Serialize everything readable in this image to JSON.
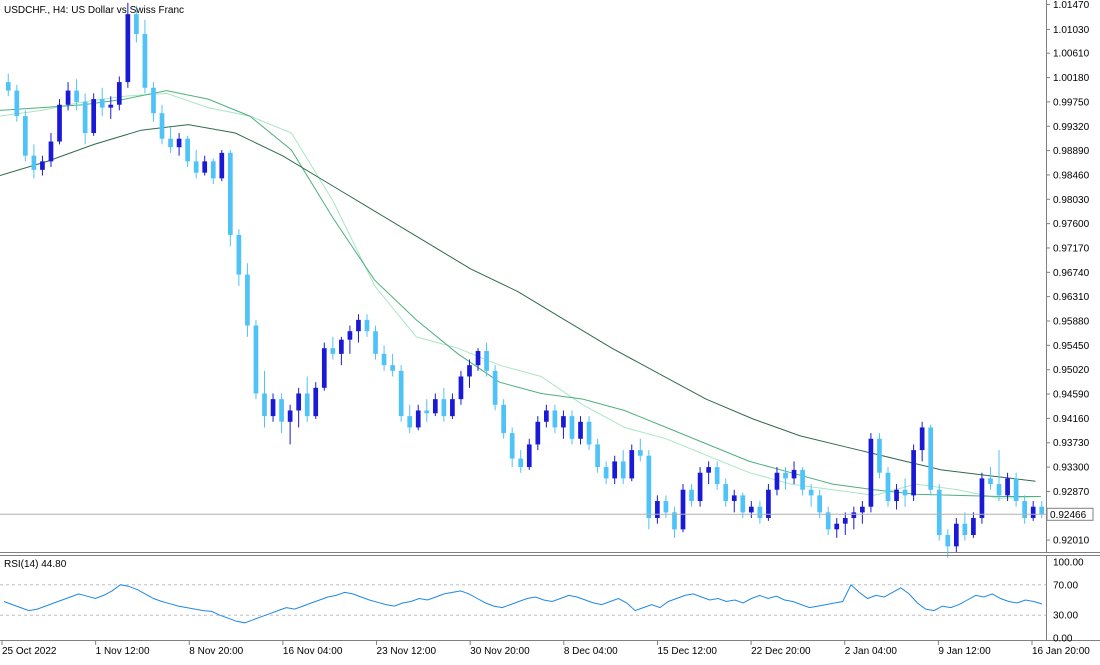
{
  "chart_data": [
    {
      "type": "candlestick",
      "title": "USDCHF., H4:  US Dollar vs Swiss Franc",
      "y_ticks": [
        "1.01470",
        "1.01030",
        "1.00610",
        "1.00180",
        "0.99750",
        "0.99320",
        "0.98890",
        "0.98460",
        "0.98030",
        "0.97600",
        "0.97170",
        "0.96740",
        "0.96310",
        "0.95880",
        "0.95450",
        "0.95020",
        "0.94590",
        "0.94160",
        "0.93730",
        "0.93300",
        "0.92870",
        "0.92010"
      ],
      "ylim": [
        0.918,
        1.0155
      ],
      "current_price": 0.92466,
      "current_price_label": "0.92466",
      "colors": {
        "bull": "#1a1ad6",
        "bear": "#4fc3f7",
        "ma_fast": "#a8e6c4",
        "ma_mid": "#4fb07e",
        "ma_slow": "#2e6b4c",
        "price_line": "#b0b0b0"
      },
      "moving_averages": [
        {
          "y": [
            0.995,
            0.996,
            0.9975,
            0.9985,
            0.999,
            0.9965,
            0.995,
            0.992,
            0.98,
            0.965,
            0.956,
            0.954,
            0.951,
            0.949,
            0.944,
            0.94,
            0.938,
            0.935,
            0.932,
            0.93,
            0.929,
            0.928,
            0.93,
            0.929,
            0.9275,
            0.9278
          ]
        },
        {
          "y": [
            0.996,
            0.9965,
            0.997,
            0.998,
            0.9995,
            0.998,
            0.995,
            0.989,
            0.977,
            0.966,
            0.959,
            0.953,
            0.948,
            0.946,
            0.945,
            0.943,
            0.94,
            0.937,
            0.934,
            0.932,
            0.93,
            0.929,
            0.9282,
            0.928,
            0.9278,
            0.9278
          ]
        },
        {
          "y": [
            0.9845,
            0.987,
            0.99,
            0.9925,
            0.9935,
            0.992,
            0.988,
            0.983,
            0.978,
            0.973,
            0.968,
            0.964,
            0.959,
            0.954,
            0.9495,
            0.945,
            0.9415,
            0.9385,
            0.9365,
            0.9345,
            0.9325,
            0.9315,
            0.9305
          ]
        }
      ],
      "ohlc": [
        [
          1.001,
          1.0025,
          0.9985,
          0.9995
        ],
        [
          0.9995,
          1.0005,
          0.994,
          0.995
        ],
        [
          0.995,
          0.996,
          0.987,
          0.988
        ],
        [
          0.988,
          0.99,
          0.984,
          0.9855
        ],
        [
          0.9855,
          0.988,
          0.9845,
          0.987
        ],
        [
          0.987,
          0.992,
          0.986,
          0.9905
        ],
        [
          0.9905,
          0.998,
          0.99,
          0.997
        ],
        [
          0.997,
          1.001,
          0.996,
          0.9995
        ],
        [
          0.9995,
          1.0015,
          0.996,
          0.9975
        ],
        [
          0.9975,
          0.999,
          0.99,
          0.992
        ],
        [
          0.992,
          0.999,
          0.9915,
          0.998
        ],
        [
          0.998,
          1.0,
          0.995,
          0.9965
        ],
        [
          0.9965,
          0.9985,
          0.9945,
          0.997
        ],
        [
          0.997,
          1.002,
          0.996,
          1.001
        ],
        [
          1.001,
          1.015,
          1.0,
          1.013
        ],
        [
          1.013,
          1.0145,
          1.008,
          1.0095
        ],
        [
          1.0095,
          1.012,
          0.999,
          1.0
        ],
        [
          1.0,
          1.001,
          0.994,
          0.9955
        ],
        [
          0.9955,
          0.997,
          0.99,
          0.991
        ],
        [
          0.991,
          0.993,
          0.9885,
          0.9895
        ],
        [
          0.9895,
          0.992,
          0.988,
          0.991
        ],
        [
          0.991,
          0.9915,
          0.986,
          0.987
        ],
        [
          0.987,
          0.989,
          0.984,
          0.985
        ],
        [
          0.985,
          0.988,
          0.9845,
          0.987
        ],
        [
          0.987,
          0.9875,
          0.983,
          0.984
        ],
        [
          0.984,
          0.989,
          0.9835,
          0.9885
        ],
        [
          0.9885,
          0.989,
          0.972,
          0.974
        ],
        [
          0.974,
          0.975,
          0.965,
          0.967
        ],
        [
          0.967,
          0.969,
          0.956,
          0.958
        ],
        [
          0.958,
          0.959,
          0.945,
          0.946
        ],
        [
          0.946,
          0.95,
          0.94,
          0.942
        ],
        [
          0.942,
          0.946,
          0.941,
          0.945
        ],
        [
          0.945,
          0.946,
          0.939,
          0.941
        ],
        [
          0.941,
          0.944,
          0.937,
          0.943
        ],
        [
          0.943,
          0.947,
          0.94,
          0.946
        ],
        [
          0.946,
          0.949,
          0.941,
          0.942
        ],
        [
          0.942,
          0.948,
          0.9415,
          0.947
        ],
        [
          0.947,
          0.955,
          0.9465,
          0.954
        ],
        [
          0.954,
          0.956,
          0.952,
          0.953
        ],
        [
          0.953,
          0.956,
          0.951,
          0.9555
        ],
        [
          0.9555,
          0.958,
          0.953,
          0.957
        ],
        [
          0.957,
          0.96,
          0.955,
          0.959
        ],
        [
          0.959,
          0.96,
          0.956,
          0.957
        ],
        [
          0.957,
          0.958,
          0.952,
          0.953
        ],
        [
          0.953,
          0.9545,
          0.95,
          0.951
        ],
        [
          0.951,
          0.953,
          0.949,
          0.95
        ],
        [
          0.95,
          0.951,
          0.941,
          0.942
        ],
        [
          0.942,
          0.944,
          0.939,
          0.94
        ],
        [
          0.94,
          0.944,
          0.9395,
          0.943
        ],
        [
          0.943,
          0.945,
          0.941,
          0.9425
        ],
        [
          0.9425,
          0.946,
          0.942,
          0.945
        ],
        [
          0.945,
          0.947,
          0.941,
          0.942
        ],
        [
          0.942,
          0.946,
          0.9415,
          0.945
        ],
        [
          0.945,
          0.95,
          0.944,
          0.949
        ],
        [
          0.949,
          0.952,
          0.947,
          0.951
        ],
        [
          0.951,
          0.954,
          0.95,
          0.9535
        ],
        [
          0.9535,
          0.955,
          0.949,
          0.95
        ],
        [
          0.95,
          0.951,
          0.943,
          0.944
        ],
        [
          0.944,
          0.945,
          0.938,
          0.939
        ],
        [
          0.939,
          0.94,
          0.933,
          0.9345
        ],
        [
          0.9345,
          0.936,
          0.932,
          0.933
        ],
        [
          0.933,
          0.938,
          0.9325,
          0.937
        ],
        [
          0.937,
          0.942,
          0.936,
          0.941
        ],
        [
          0.941,
          0.944,
          0.94,
          0.943
        ],
        [
          0.943,
          0.944,
          0.939,
          0.94
        ],
        [
          0.94,
          0.943,
          0.938,
          0.942
        ],
        [
          0.942,
          0.943,
          0.937,
          0.938
        ],
        [
          0.938,
          0.942,
          0.937,
          0.941
        ],
        [
          0.941,
          0.942,
          0.936,
          0.937
        ],
        [
          0.937,
          0.938,
          0.932,
          0.933
        ],
        [
          0.933,
          0.934,
          0.93,
          0.931
        ],
        [
          0.931,
          0.935,
          0.93,
          0.934
        ],
        [
          0.934,
          0.936,
          0.93,
          0.931
        ],
        [
          0.931,
          0.937,
          0.9305,
          0.936
        ],
        [
          0.936,
          0.938,
          0.934,
          0.935
        ],
        [
          0.935,
          0.936,
          0.922,
          0.924
        ],
        [
          0.924,
          0.928,
          0.923,
          0.927
        ],
        [
          0.927,
          0.928,
          0.924,
          0.925
        ],
        [
          0.925,
          0.926,
          0.9205,
          0.922
        ],
        [
          0.922,
          0.93,
          0.9215,
          0.929
        ],
        [
          0.929,
          0.93,
          0.926,
          0.927
        ],
        [
          0.927,
          0.933,
          0.926,
          0.932
        ],
        [
          0.932,
          0.934,
          0.93,
          0.933
        ],
        [
          0.933,
          0.934,
          0.929,
          0.93
        ],
        [
          0.93,
          0.931,
          0.926,
          0.927
        ],
        [
          0.927,
          0.929,
          0.925,
          0.928
        ],
        [
          0.928,
          0.9285,
          0.924,
          0.925
        ],
        [
          0.925,
          0.927,
          0.924,
          0.926
        ],
        [
          0.926,
          0.927,
          0.923,
          0.924
        ],
        [
          0.924,
          0.93,
          0.9235,
          0.929
        ],
        [
          0.929,
          0.933,
          0.928,
          0.932
        ],
        [
          0.932,
          0.933,
          0.929,
          0.931
        ],
        [
          0.931,
          0.934,
          0.93,
          0.9325
        ],
        [
          0.9325,
          0.933,
          0.928,
          0.929
        ],
        [
          0.929,
          0.93,
          0.926,
          0.928
        ],
        [
          0.928,
          0.929,
          0.924,
          0.925
        ],
        [
          0.925,
          0.926,
          0.921,
          0.922
        ],
        [
          0.922,
          0.924,
          0.9205,
          0.923
        ],
        [
          0.923,
          0.925,
          0.921,
          0.924
        ],
        [
          0.924,
          0.926,
          0.922,
          0.925
        ],
        [
          0.925,
          0.927,
          0.923,
          0.926
        ],
        [
          0.926,
          0.939,
          0.925,
          0.938
        ],
        [
          0.938,
          0.939,
          0.931,
          0.932
        ],
        [
          0.932,
          0.933,
          0.926,
          0.927
        ],
        [
          0.927,
          0.93,
          0.9255,
          0.929
        ],
        [
          0.929,
          0.931,
          0.926,
          0.928
        ],
        [
          0.928,
          0.937,
          0.927,
          0.936
        ],
        [
          0.936,
          0.941,
          0.934,
          0.94
        ],
        [
          0.94,
          0.9405,
          0.928,
          0.929
        ],
        [
          0.929,
          0.93,
          0.92,
          0.921
        ],
        [
          0.921,
          0.922,
          0.917,
          0.919
        ],
        [
          0.919,
          0.924,
          0.918,
          0.923
        ],
        [
          0.923,
          0.925,
          0.92,
          0.921
        ],
        [
          0.921,
          0.925,
          0.9205,
          0.924
        ],
        [
          0.924,
          0.932,
          0.923,
          0.931
        ],
        [
          0.931,
          0.933,
          0.929,
          0.93
        ],
        [
          0.93,
          0.936,
          0.927,
          0.928
        ],
        [
          0.928,
          0.932,
          0.927,
          0.931
        ],
        [
          0.931,
          0.932,
          0.926,
          0.927
        ],
        [
          0.927,
          0.928,
          0.923,
          0.924
        ],
        [
          0.924,
          0.927,
          0.9235,
          0.926
        ],
        [
          0.926,
          0.927,
          0.924,
          0.9247
        ]
      ]
    },
    {
      "type": "line",
      "title": "RSI(14) 44.80",
      "ylim": [
        0,
        100
      ],
      "y_ticks": [
        "100.00",
        "70.00",
        "30.00",
        "0.00"
      ],
      "levels": [
        70,
        30
      ],
      "x_ticks": [
        "25 Oct 2022",
        "1 Nov 12:00",
        "8 Nov 20:00",
        "16 Nov 04:00",
        "23 Nov 12:00",
        "30 Nov 20:00",
        "8 Dec 04:00",
        "15 Dec 12:00",
        "22 Dec 20:00",
        "2 Jan 04:00",
        "9 Jan 12:00",
        "16 Jan 20:00"
      ],
      "color": "#1e88e5",
      "values": [
        48,
        44,
        40,
        36,
        38,
        42,
        46,
        50,
        54,
        58,
        55,
        52,
        56,
        62,
        70,
        68,
        64,
        58,
        52,
        48,
        45,
        42,
        40,
        38,
        36,
        35,
        30,
        26,
        22,
        20,
        24,
        28,
        32,
        36,
        40,
        38,
        42,
        46,
        50,
        54,
        56,
        60,
        58,
        54,
        50,
        47,
        44,
        42,
        46,
        48,
        52,
        50,
        54,
        58,
        60,
        62,
        58,
        52,
        46,
        42,
        40,
        44,
        48,
        52,
        54,
        50,
        48,
        52,
        56,
        54,
        50,
        46,
        44,
        48,
        52,
        46,
        36,
        40,
        44,
        40,
        48,
        52,
        56,
        58,
        54,
        50,
        52,
        48,
        50,
        46,
        52,
        56,
        52,
        55,
        50,
        48,
        44,
        40,
        42,
        44,
        46,
        48,
        70,
        60,
        52,
        56,
        54,
        60,
        66,
        58,
        46,
        38,
        36,
        42,
        40,
        44,
        50,
        56,
        54,
        58,
        52,
        48,
        46,
        50,
        48,
        44.8
      ]
    }
  ]
}
